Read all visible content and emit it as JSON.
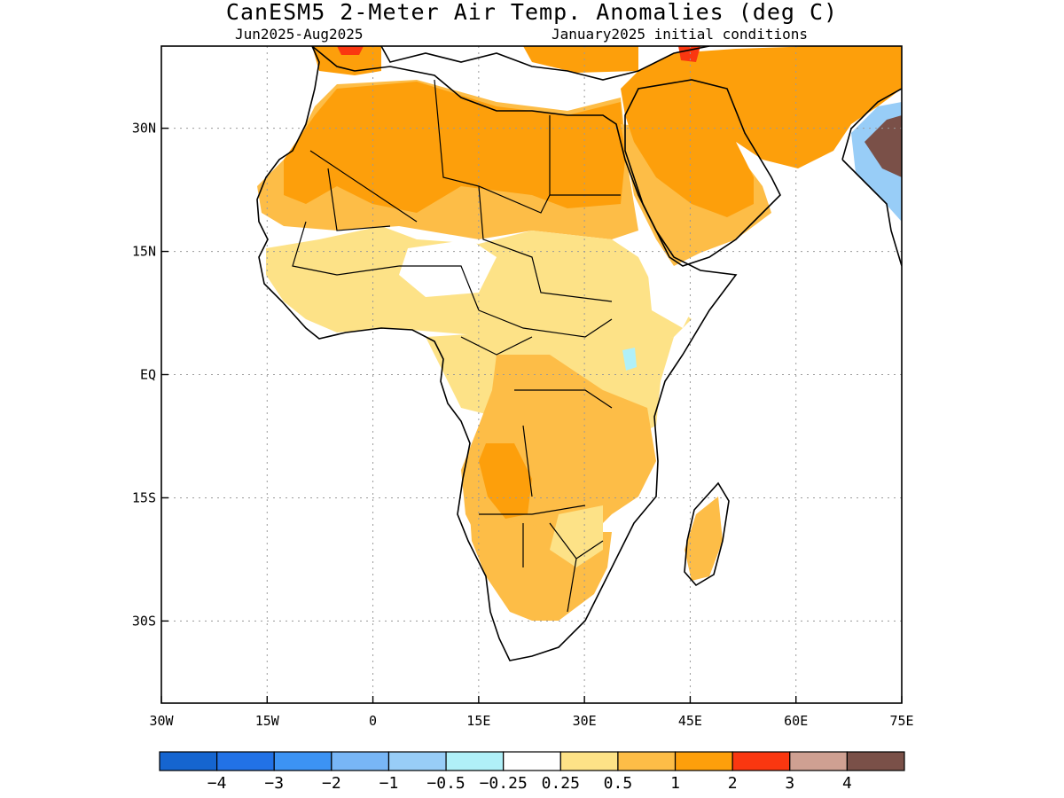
{
  "header": {
    "title": "CanESM5 2-Meter Air Temp. Anomalies (deg C)",
    "period": "Jun2025-Aug2025",
    "init": "January2025 initial conditions"
  },
  "map": {
    "lon_range": [
      -30,
      75
    ],
    "lat_range": [
      -40,
      40
    ],
    "lon_ticks": [
      {
        "value": -30,
        "label": "30W"
      },
      {
        "value": -15,
        "label": "15W"
      },
      {
        "value": 0,
        "label": "0"
      },
      {
        "value": 15,
        "label": "15E"
      },
      {
        "value": 30,
        "label": "30E"
      },
      {
        "value": 45,
        "label": "45E"
      },
      {
        "value": 60,
        "label": "60E"
      },
      {
        "value": 75,
        "label": "75E"
      }
    ],
    "lat_ticks": [
      {
        "value": 30,
        "label": "30N"
      },
      {
        "value": 15,
        "label": "15N"
      },
      {
        "value": 0,
        "label": "EQ"
      },
      {
        "value": -15,
        "label": "15S"
      },
      {
        "value": -30,
        "label": "30S"
      }
    ],
    "grid": true
  },
  "colorbar": {
    "colors": [
      "#1565d0",
      "#2272e6",
      "#3c93f4",
      "#78b6f6",
      "#98cdf7",
      "#b0f0f8",
      "#ffffff",
      "#fde287",
      "#fdbd47",
      "#fd9f0b",
      "#fa3710",
      "#cfa092",
      "#7a5048"
    ],
    "labels": [
      "-4",
      "-3",
      "-2",
      "-1",
      "-0.5",
      "-0.25",
      "0.25",
      "0.5",
      "1",
      "2",
      "3",
      "4"
    ]
  }
}
